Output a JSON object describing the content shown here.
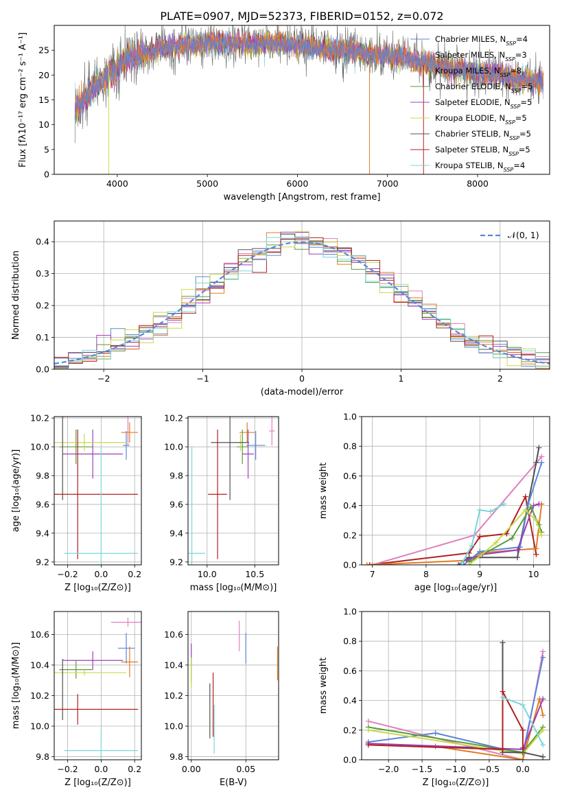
{
  "figure_title": "PLATE=0907, MJD=52373, FIBERID=0152, z=0.072",
  "colors": {
    "chabrier_miles": "#5b86d6",
    "salpeter_miles": "#e07fbc",
    "kroupa_miles": "#e07b20",
    "chabrier_elodie": "#5a9a3a",
    "salpeter_elodie": "#9b3fb5",
    "kroupa_elodie": "#c8d94a",
    "chabrier_stelib": "#505050",
    "salpeter_stelib": "#b01e1e",
    "kroupa_stelib": "#7ad6d8",
    "gaussian": "#5b86d6",
    "grid": "#b0b0b0"
  },
  "chart_data": [
    {
      "id": "spectrum",
      "type": "line",
      "title": "PLATE=0907, MJD=52373, FIBERID=0152, z=0.072",
      "xlabel": "wavelength [Angstrom, rest frame]",
      "ylabel": "Flux [fλ10⁻¹⁷ erg cm⁻² s⁻¹ A⁻¹]",
      "xlim": [
        3300,
        8800
      ],
      "ylim": [
        0,
        30
      ],
      "xticks": [
        4000,
        5000,
        6000,
        7000,
        8000
      ],
      "yticks": [
        0,
        5,
        10,
        15,
        20,
        25
      ],
      "grid": false,
      "legend_position": "right",
      "legend": [
        {
          "label": "Chabrier MILES, N",
          "sub": "SSP",
          "suffix": "=4",
          "color": "#5b86d6"
        },
        {
          "label": "Salpeter MILES, N",
          "sub": "SSP",
          "suffix": "=3",
          "color": "#e07fbc"
        },
        {
          "label": "Kroupa MILES, N",
          "sub": "SSP",
          "suffix": "=8",
          "color": "#e07b20"
        },
        {
          "label": "Chabrier ELODIE, N",
          "sub": "SSP",
          "suffix": "=5",
          "color": "#5a9a3a"
        },
        {
          "label": "Salpeter ELODIE, N",
          "sub": "SSP",
          "suffix": "=5",
          "color": "#9b3fb5"
        },
        {
          "label": "Kroupa ELODIE, N",
          "sub": "SSP",
          "suffix": "=5",
          "color": "#c8d94a"
        },
        {
          "label": "Chabrier STELIB, N",
          "sub": "SSP",
          "suffix": "=5",
          "color": "#505050"
        },
        {
          "label": "Salpeter STELIB, N",
          "sub": "SSP",
          "suffix": "=5",
          "color": "#b01e1e"
        },
        {
          "label": "Kroupa STELIB, N",
          "sub": "SSP",
          "suffix": "=4",
          "color": "#7ad6d8"
        }
      ],
      "continuum": {
        "x": [
          3530,
          3600,
          3700,
          3800,
          3900,
          4000,
          4100,
          4200,
          4300,
          4400,
          4500,
          4700,
          5000,
          5200,
          5500,
          5800,
          6000,
          6200,
          6500,
          6800,
          7000,
          7200,
          7400,
          7600,
          7800,
          8000,
          8200,
          8500,
          8730
        ],
        "y": [
          13,
          14.2,
          16.5,
          18.3,
          20,
          21.5,
          23,
          23.7,
          24.3,
          24.7,
          25.5,
          26,
          26.3,
          26.5,
          26.2,
          26.5,
          26,
          25.5,
          25,
          24.3,
          24,
          23.5,
          22.5,
          21.5,
          21,
          20.5,
          20,
          19.3,
          18.5
        ]
      }
    },
    {
      "id": "residuals",
      "type": "histogram",
      "xlabel": "(data-model)/error",
      "ylabel": "Normed distribution",
      "xlim": [
        -2.5,
        2.5
      ],
      "ylim": [
        0,
        0.465
      ],
      "xticks": [
        -2,
        -1,
        0,
        1,
        2
      ],
      "yticks": [
        0.0,
        0.1,
        0.2,
        0.3,
        0.4
      ],
      "grid": true,
      "legend_position": "top-right",
      "gaussian_label": "𝒩(0, 1)"
    },
    {
      "id": "age_vs_Z",
      "type": "scatter",
      "xlabel": "Z [log₁₀(Z/Z⊙)]",
      "ylabel": "age  [log₁₀(age/yr)]",
      "xlim": [
        -0.28,
        0.24
      ],
      "ylim": [
        9.18,
        10.21
      ],
      "xticks": [
        -0.2,
        0.0,
        0.2
      ],
      "yticks": [
        9.2,
        9.4,
        9.6,
        9.8,
        10.0,
        10.2
      ],
      "grid": true,
      "points": [
        {
          "color": "#5b86d6",
          "x": 0.15,
          "xerr": 0.02,
          "y": 10.01,
          "yerr": 0.1
        },
        {
          "color": "#e07fbc",
          "x": 0.16,
          "xerr": 0.0,
          "y": 10.11,
          "yerr": 0.1
        },
        {
          "color": "#e07b20",
          "x": 0.17,
          "xerr": 0.05,
          "y": 10.1,
          "yerr": 0.07
        },
        {
          "color": "#5a9a3a",
          "x": -0.15,
          "xerr": 0.1,
          "y": 10.0,
          "yerr": 0.12
        },
        {
          "color": "#9b3fb5",
          "x": -0.05,
          "xerr": 0.18,
          "y": 9.95,
          "yerr": 0.17
        },
        {
          "color": "#c8d94a",
          "x": -0.1,
          "xerr": 0.25,
          "y": 10.03,
          "yerr": 0.06
        },
        {
          "color": "#505050",
          "x": -0.23,
          "xerr": 0.0,
          "y": 10.03,
          "yerr": 0.4
        },
        {
          "color": "#b01e1e",
          "x": -0.14,
          "xerr": 0.36,
          "y": 9.67,
          "yerr": 0.45
        },
        {
          "color": "#7ad6d8",
          "x": 0.0,
          "xerr": 0.22,
          "y": 9.26,
          "yerr": 0.74
        }
      ]
    },
    {
      "id": "age_vs_mass",
      "type": "scatter",
      "xlabel": "mass [log₁₀(M/M⊙)]",
      "ylabel": "",
      "xlim": [
        9.8,
        10.75
      ],
      "ylim": [
        9.18,
        10.21
      ],
      "xticks": [
        10.0,
        10.5
      ],
      "yticks": [
        9.2,
        9.4,
        9.6,
        9.8,
        10.0,
        10.2
      ],
      "grid": true,
      "points": [
        {
          "color": "#5b86d6",
          "x": 10.51,
          "xerr": 0.1,
          "y": 10.01,
          "yerr": 0.1
        },
        {
          "color": "#e07fbc",
          "x": 10.68,
          "xerr": 0.03,
          "y": 10.11,
          "yerr": 0.1
        },
        {
          "color": "#e07b20",
          "x": 10.42,
          "xerr": 0.08,
          "y": 10.1,
          "yerr": 0.07
        },
        {
          "color": "#5a9a3a",
          "x": 10.37,
          "xerr": 0.06,
          "y": 10.0,
          "yerr": 0.12
        },
        {
          "color": "#9b3fb5",
          "x": 10.43,
          "xerr": 0.06,
          "y": 9.95,
          "yerr": 0.17
        },
        {
          "color": "#c8d94a",
          "x": 10.35,
          "xerr": 0.02,
          "y": 10.03,
          "yerr": 0.06
        },
        {
          "color": "#505050",
          "x": 10.24,
          "xerr": 0.2,
          "y": 10.03,
          "yerr": 0.4
        },
        {
          "color": "#b01e1e",
          "x": 10.11,
          "xerr": 0.1,
          "y": 9.67,
          "yerr": 0.45
        },
        {
          "color": "#7ad6d8",
          "x": 9.84,
          "xerr": 0.14,
          "y": 9.26,
          "yerr": 0.74
        }
      ]
    },
    {
      "id": "weight_vs_age",
      "type": "line",
      "xlabel": "age  [log₁₀(age/yr)]",
      "ylabel": "mass weight",
      "xlim": [
        6.8,
        10.3
      ],
      "ylim": [
        0,
        1.0
      ],
      "xticks": [
        7,
        8,
        9,
        10
      ],
      "yticks": [
        0.0,
        0.2,
        0.4,
        0.6,
        0.8,
        1.0
      ],
      "grid": true,
      "series": [
        {
          "color": "#b01e1e",
          "x": [
            6.95,
            8.8,
            9.0,
            9.5,
            9.85,
            10.05
          ],
          "y": [
            0.0,
            0.08,
            0.19,
            0.21,
            0.46,
            0.07
          ]
        },
        {
          "color": "#e07fbc",
          "x": [
            7.0,
            8.9,
            10.15
          ],
          "y": [
            0.0,
            0.2,
            0.73
          ]
        },
        {
          "color": "#e07b20",
          "x": [
            6.9,
            8.8,
            9.0,
            10.05,
            10.15
          ],
          "y": [
            0.0,
            0.03,
            0.08,
            0.11,
            0.41
          ]
        },
        {
          "color": "#505050",
          "x": [
            8.6,
            8.8,
            9.7,
            10.05,
            10.1
          ],
          "y": [
            0.0,
            0.05,
            0.05,
            0.69,
            0.79
          ]
        },
        {
          "color": "#5b86d6",
          "x": [
            8.7,
            9.0,
            9.75,
            9.9,
            10.15
          ],
          "y": [
            0.0,
            0.09,
            0.12,
            0.41,
            0.69
          ]
        },
        {
          "color": "#9b3fb5",
          "x": [
            8.75,
            9.05,
            9.7,
            10.0,
            10.1
          ],
          "y": [
            0.03,
            0.07,
            0.1,
            0.4,
            0.41
          ]
        },
        {
          "color": "#5a9a3a",
          "x": [
            8.8,
            9.6,
            9.95,
            10.1,
            10.15
          ],
          "y": [
            0.02,
            0.18,
            0.39,
            0.27,
            0.22
          ]
        },
        {
          "color": "#c8d94a",
          "x": [
            8.8,
            9.3,
            9.85,
            10.05,
            10.15
          ],
          "y": [
            0.0,
            0.15,
            0.37,
            0.3,
            0.2
          ]
        },
        {
          "color": "#7ad6d8",
          "x": [
            8.65,
            8.85,
            9.0,
            9.2,
            9.45
          ],
          "y": [
            0.0,
            0.13,
            0.37,
            0.36,
            0.41
          ]
        }
      ]
    },
    {
      "id": "mass_vs_Z",
      "type": "scatter",
      "xlabel": "Z [log₁₀(Z/Z⊙)]",
      "ylabel": "mass [log₁₀(M/M⊙)]",
      "xlim": [
        -0.28,
        0.24
      ],
      "ylim": [
        9.78,
        10.75
      ],
      "xticks": [
        -0.2,
        0.0,
        0.2
      ],
      "yticks": [
        9.8,
        10.0,
        10.2,
        10.4,
        10.6
      ],
      "grid": true,
      "points": [
        {
          "color": "#5b86d6",
          "x": 0.15,
          "xerr": 0.05,
          "y": 10.51,
          "yerr": 0.1
        },
        {
          "color": "#e07fbc",
          "x": 0.16,
          "xerr": 0.1,
          "y": 10.68,
          "yerr": 0.03
        },
        {
          "color": "#e07b20",
          "x": 0.17,
          "xerr": 0.05,
          "y": 10.42,
          "yerr": 0.1
        },
        {
          "color": "#5a9a3a",
          "x": -0.15,
          "xerr": 0.1,
          "y": 10.37,
          "yerr": 0.06
        },
        {
          "color": "#9b3fb5",
          "x": -0.05,
          "xerr": 0.18,
          "y": 10.43,
          "yerr": 0.06
        },
        {
          "color": "#c8d94a",
          "x": -0.1,
          "xerr": 0.25,
          "y": 10.35,
          "yerr": 0.02
        },
        {
          "color": "#505050",
          "x": -0.23,
          "xerr": 0.0,
          "y": 10.24,
          "yerr": 0.2
        },
        {
          "color": "#b01e1e",
          "x": -0.14,
          "xerr": 0.36,
          "y": 10.11,
          "yerr": 0.1
        },
        {
          "color": "#7ad6d8",
          "x": 0.0,
          "xerr": 0.22,
          "y": 9.84,
          "yerr": 0.14
        }
      ]
    },
    {
      "id": "mass_vs_ebv",
      "type": "scatter",
      "xlabel": "E(B-V)",
      "ylabel": "",
      "xlim": [
        -0.003,
        0.08
      ],
      "ylim": [
        9.78,
        10.75
      ],
      "xticks": [
        0.0,
        0.05
      ],
      "yticks": [
        9.8,
        10.0,
        10.2,
        10.4,
        10.6
      ],
      "grid": true,
      "points": [
        {
          "color": "#5b86d6",
          "x": 0.05,
          "xerr": 0.0,
          "y": 10.51,
          "yerr": 0.1
        },
        {
          "color": "#e07fbc",
          "x": 0.044,
          "xerr": 0.0,
          "y": 10.59,
          "yerr": 0.1
        },
        {
          "color": "#e07b20",
          "x": 0.079,
          "xerr": 0.0,
          "y": 10.41,
          "yerr": 0.11
        },
        {
          "color": "#5a9a3a",
          "x": 0.0,
          "xerr": 0.0,
          "y": 10.37,
          "yerr": 0.08
        },
        {
          "color": "#9b3fb5",
          "x": 0.0,
          "xerr": 0.0,
          "y": 10.47,
          "yerr": 0.07
        },
        {
          "color": "#c8d94a",
          "x": 0.0,
          "xerr": 0.0,
          "y": 10.35,
          "yerr": 0.1
        },
        {
          "color": "#505050",
          "x": 0.017,
          "xerr": 0.0,
          "y": 10.1,
          "yerr": 0.18
        },
        {
          "color": "#b01e1e",
          "x": 0.02,
          "xerr": 0.0,
          "y": 10.14,
          "yerr": 0.21
        },
        {
          "color": "#7ad6d8",
          "x": 0.021,
          "xerr": 0.0,
          "y": 9.98,
          "yerr": 0.16
        }
      ]
    },
    {
      "id": "weight_vs_Z",
      "type": "line",
      "xlabel": "Z [log₁₀(Z/Z⊙)]",
      "ylabel": "mass weight",
      "xlim": [
        -2.4,
        0.4
      ],
      "ylim": [
        0,
        1.0
      ],
      "xticks": [
        -2.0,
        -1.5,
        -1.0,
        -0.5,
        0.0
      ],
      "yticks": [
        0.0,
        0.2,
        0.4,
        0.6,
        0.8,
        1.0
      ],
      "grid": true,
      "series": [
        {
          "color": "#e07fbc",
          "x": [
            -2.3,
            0.0,
            0.3
          ],
          "y": [
            0.26,
            0.0,
            0.73
          ]
        },
        {
          "color": "#5b86d6",
          "x": [
            -2.3,
            -1.3,
            0.0,
            0.3
          ],
          "y": [
            0.12,
            0.18,
            0.04,
            0.69
          ]
        },
        {
          "color": "#e07b20",
          "x": [
            -1.3,
            0.0,
            0.25,
            0.3
          ],
          "y": [
            0.09,
            0.0,
            0.41,
            0.3
          ]
        },
        {
          "color": "#5a9a3a",
          "x": [
            -2.3,
            0.0,
            0.3
          ],
          "y": [
            0.22,
            0.05,
            0.22
          ]
        },
        {
          "color": "#9b3fb5",
          "x": [
            -2.3,
            0.0,
            0.3
          ],
          "y": [
            0.11,
            0.07,
            0.41
          ]
        },
        {
          "color": "#c8d94a",
          "x": [
            -2.3,
            0.0,
            0.3
          ],
          "y": [
            0.2,
            0.04,
            0.2
          ]
        },
        {
          "color": "#505050",
          "x": [
            -0.3,
            -0.3,
            0.0,
            0.3
          ],
          "y": [
            0.79,
            0.05,
            0.05,
            0.02
          ]
        },
        {
          "color": "#b01e1e",
          "x": [
            -2.3,
            -0.3,
            -0.3,
            0.0,
            0.0
          ],
          "y": [
            0.1,
            0.07,
            0.46,
            0.2,
            0.08
          ]
        },
        {
          "color": "#7ad6d8",
          "x": [
            -0.3,
            0.0,
            0.3
          ],
          "y": [
            0.42,
            0.37,
            0.1
          ]
        }
      ]
    }
  ]
}
